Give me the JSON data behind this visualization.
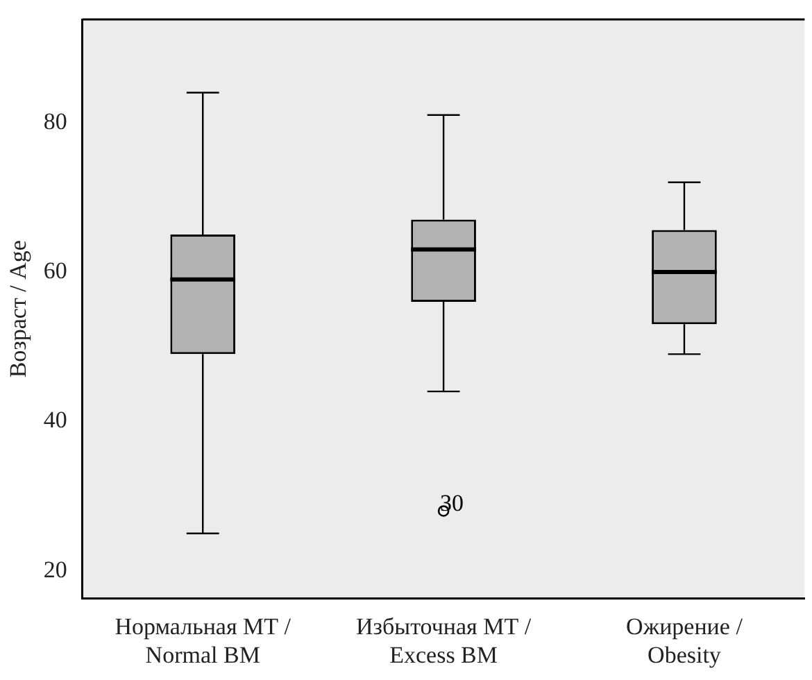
{
  "chart_data": {
    "type": "box",
    "ylabel": "Возраст / Age",
    "categories": [
      "Нормальная МТ / Normal BM",
      "Избыточная МТ / Excess BM",
      "Ожирение / Obesity"
    ],
    "boxes": [
      {
        "low": 25,
        "q1": 49,
        "median": 59,
        "q3": 65,
        "high": 84
      },
      {
        "low": 44,
        "q1": 56,
        "median": 63,
        "q3": 67,
        "high": 81,
        "outliers": [
          28
        ]
      },
      {
        "low": 49,
        "q1": 53,
        "median": 60,
        "q3": 65.6,
        "high": 72
      }
    ],
    "color": "#b3b3b3",
    "ylim": [
      16.3,
      93.8
    ],
    "yticks": [
      20,
      40,
      60,
      80
    ],
    "grid": false,
    "legend": false,
    "annotations": [
      "30"
    ]
  }
}
